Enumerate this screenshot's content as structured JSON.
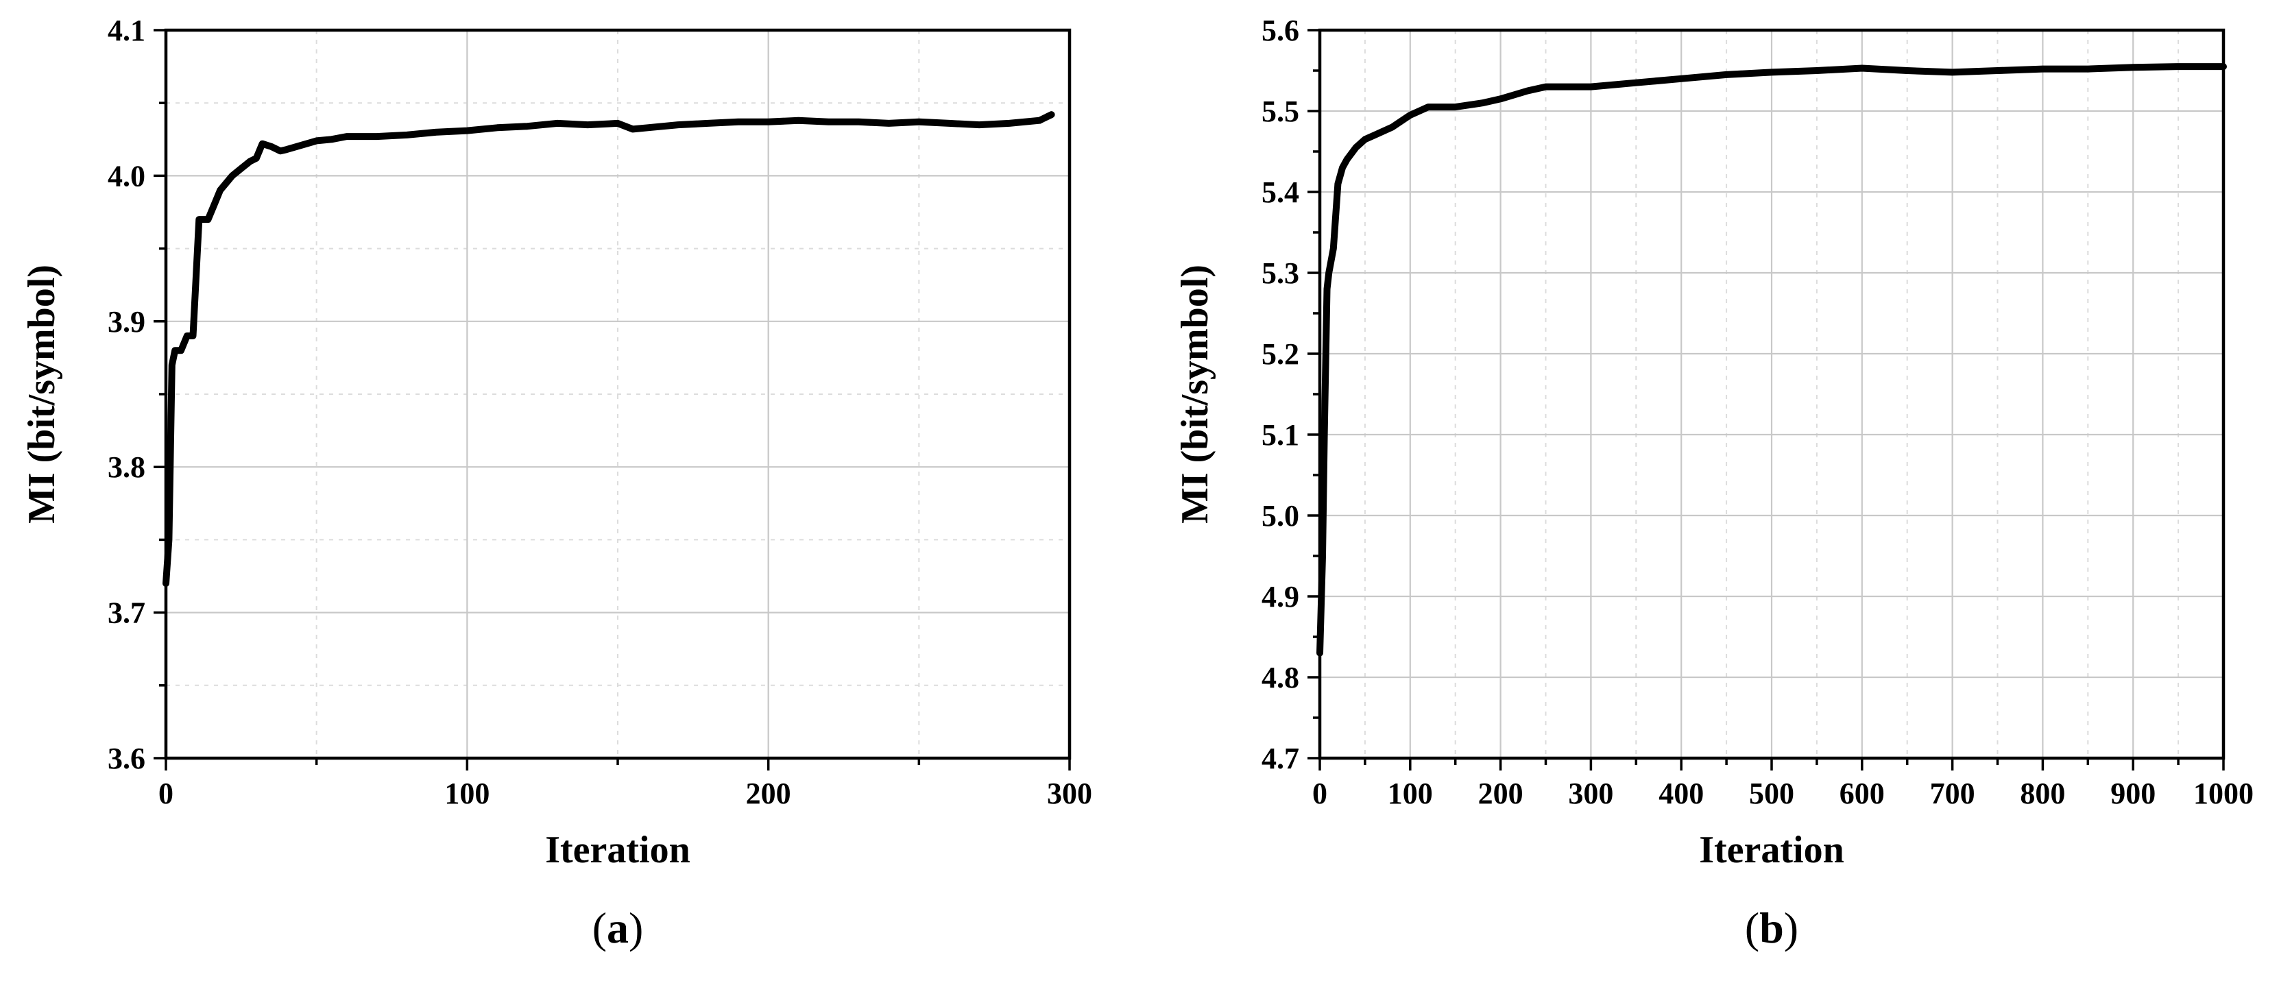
{
  "chart_data": [
    {
      "type": "line",
      "panel_label": "a",
      "xlabel": "Iteration",
      "ylabel": "MI (bit/symbol)",
      "xlim": [
        0,
        300
      ],
      "ylim": [
        3.6,
        4.1
      ],
      "xticks": [
        0,
        100,
        200,
        300
      ],
      "yticks": [
        3.6,
        3.7,
        3.8,
        3.9,
        4.0,
        4.1
      ],
      "xtick_labels": [
        "0",
        "100",
        "200",
        "300"
      ],
      "ytick_labels": [
        "3.6",
        "3.7",
        "3.8",
        "3.9",
        "4.0",
        "4.1"
      ],
      "grid": true,
      "series": [
        {
          "color": "#000000",
          "x": [
            0,
            1,
            2,
            3,
            4,
            5,
            7,
            9,
            10,
            11,
            12,
            14,
            16,
            18,
            20,
            22,
            25,
            28,
            30,
            32,
            35,
            38,
            40,
            45,
            50,
            55,
            60,
            70,
            80,
            90,
            100,
            110,
            120,
            130,
            140,
            150,
            155,
            160,
            170,
            180,
            190,
            200,
            210,
            220,
            230,
            240,
            250,
            260,
            270,
            280,
            290,
            294
          ],
          "y": [
            3.72,
            3.75,
            3.87,
            3.88,
            3.88,
            3.88,
            3.89,
            3.89,
            3.93,
            3.97,
            3.97,
            3.97,
            3.98,
            3.99,
            3.995,
            4.0,
            4.005,
            4.01,
            4.012,
            4.022,
            4.02,
            4.017,
            4.018,
            4.021,
            4.024,
            4.025,
            4.027,
            4.027,
            4.028,
            4.03,
            4.031,
            4.033,
            4.034,
            4.036,
            4.035,
            4.036,
            4.032,
            4.033,
            4.035,
            4.036,
            4.037,
            4.037,
            4.038,
            4.037,
            4.037,
            4.036,
            4.037,
            4.036,
            4.035,
            4.036,
            4.038,
            4.042
          ]
        }
      ]
    },
    {
      "type": "line",
      "panel_label": "b",
      "xlabel": "Iteration",
      "ylabel": "MI (bit/symbol)",
      "xlim": [
        0,
        1000
      ],
      "ylim": [
        4.7,
        5.6
      ],
      "xticks": [
        0,
        100,
        200,
        300,
        400,
        500,
        600,
        700,
        800,
        900,
        1000
      ],
      "yticks": [
        4.7,
        4.8,
        4.9,
        5.0,
        5.1,
        5.2,
        5.3,
        5.4,
        5.5,
        5.6
      ],
      "xtick_labels": [
        "0",
        "100",
        "200",
        "300",
        "400",
        "500",
        "600",
        "700",
        "800",
        "900",
        "1000"
      ],
      "ytick_labels": [
        "4.7",
        "4.8",
        "4.9",
        "5.0",
        "5.1",
        "5.2",
        "5.3",
        "5.4",
        "5.5",
        "5.6"
      ],
      "grid": true,
      "series": [
        {
          "color": "#000000",
          "x": [
            0,
            3,
            5,
            8,
            10,
            15,
            20,
            25,
            30,
            40,
            50,
            60,
            80,
            100,
            120,
            150,
            180,
            200,
            230,
            250,
            280,
            300,
            350,
            400,
            450,
            500,
            550,
            600,
            650,
            700,
            750,
            800,
            850,
            900,
            950,
            1000
          ],
          "y": [
            4.83,
            4.95,
            5.1,
            5.28,
            5.3,
            5.33,
            5.41,
            5.43,
            5.44,
            5.455,
            5.465,
            5.47,
            5.48,
            5.495,
            5.505,
            5.505,
            5.51,
            5.515,
            5.525,
            5.53,
            5.53,
            5.53,
            5.535,
            5.54,
            5.545,
            5.548,
            5.55,
            5.553,
            5.55,
            5.548,
            5.55,
            5.552,
            5.552,
            5.554,
            5.555,
            5.555
          ]
        }
      ]
    }
  ]
}
